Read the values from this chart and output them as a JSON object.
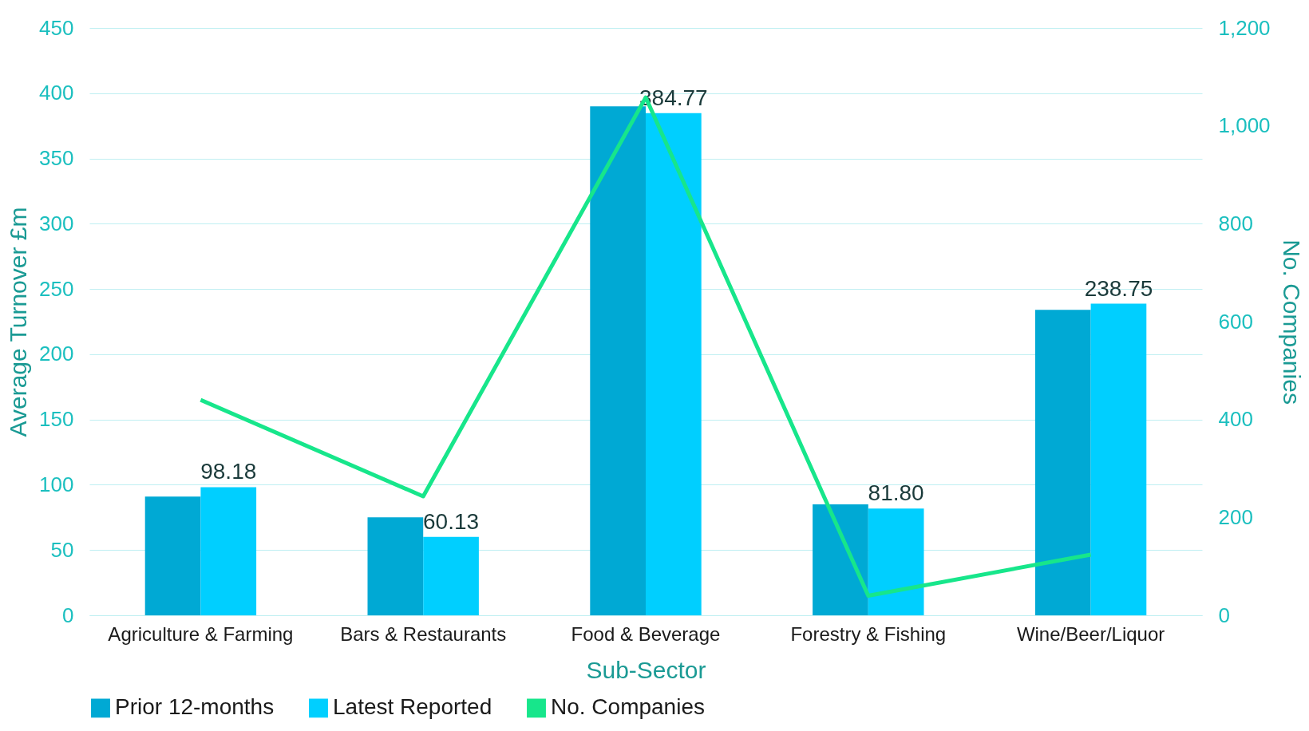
{
  "chart_data": {
    "type": "bar",
    "xlabel": "Sub-Sector",
    "ylabel": "Average Turnover £m",
    "y2label": "No. Companies",
    "categories": [
      "Agriculture & Farming",
      "Bars & Restaurants",
      "Food & Beverage",
      "Forestry & Fishing",
      "Wine/Beer/Liquor"
    ],
    "series": [
      {
        "name": "Prior 12-months",
        "color": "#00a9d4",
        "values": [
          91,
          75,
          390,
          85,
          234
        ]
      },
      {
        "name": "Latest Reported",
        "color": "#00cfff",
        "values": [
          98.18,
          60.13,
          384.77,
          81.8,
          238.75
        ],
        "value_labels": [
          "98.18",
          "60.13",
          "384.77",
          "81.80",
          "238.75"
        ]
      },
      {
        "name": "No. Companies",
        "type": "line",
        "axis": "y2",
        "color": "#17e68b",
        "values": [
          440,
          243,
          1058,
          40,
          124
        ]
      }
    ],
    "ylim": [
      0,
      450
    ],
    "yticks": [
      0,
      50,
      100,
      150,
      200,
      250,
      300,
      350,
      400,
      450
    ],
    "y2lim": [
      0,
      1200
    ],
    "y2ticks": [
      0,
      200,
      400,
      600,
      800,
      {
        "value": 1000,
        "label": "1,000"
      },
      {
        "value": 1200,
        "label": "1,200"
      }
    ],
    "grid": "y",
    "legend": "bottom"
  }
}
